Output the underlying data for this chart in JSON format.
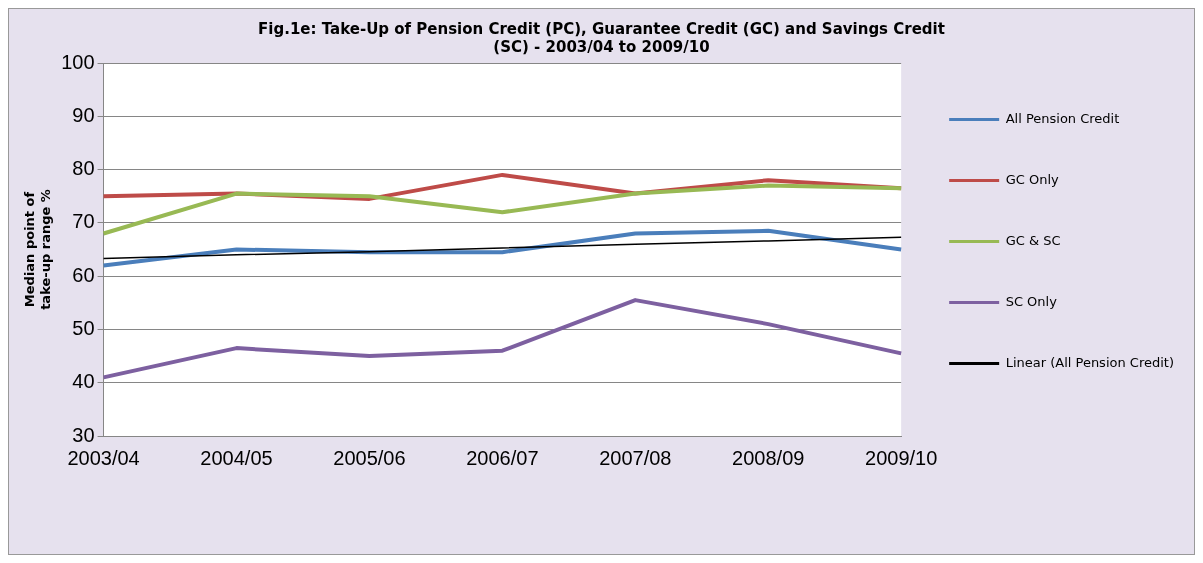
{
  "chart_data": {
    "type": "line",
    "title": "Fig.1e: Take-Up of Pension Credit (PC), Guarantee Credit (GC) and Savings Credit (SC) - 2003/04 to 2009/10",
    "ylabel": "Median point of take-up range %",
    "categories": [
      "2003/04",
      "2004/05",
      "2005/06",
      "2006/07",
      "2007/08",
      "2008/09",
      "2009/10"
    ],
    "series": [
      {
        "name": "All Pension Credit",
        "color": "#4a7ebb",
        "values": [
          62,
          65,
          64.5,
          64.5,
          68,
          68.5,
          65
        ]
      },
      {
        "name": "GC Only",
        "color": "#be4b48",
        "values": [
          75,
          75.5,
          74.5,
          79,
          75.5,
          78,
          76.5
        ]
      },
      {
        "name": "GC & SC",
        "color": "#98b954",
        "values": [
          68,
          75.5,
          75,
          72,
          75.5,
          77,
          76.5
        ]
      },
      {
        "name": "SC Only",
        "color": "#7d60a0",
        "values": [
          41,
          46.5,
          45,
          46,
          55.5,
          51,
          45.5
        ]
      },
      {
        "name": "Linear (All Pension Credit)",
        "color": "#000000",
        "values": [
          63.3,
          64,
          64.6,
          65.3,
          66,
          66.6,
          67.3
        ]
      }
    ],
    "ylim": [
      30,
      100
    ],
    "yticks": [
      30,
      40,
      50,
      60,
      70,
      80,
      90,
      100
    ],
    "grid": "y",
    "legend": "right",
    "marker": "none",
    "line_style": "solid"
  }
}
